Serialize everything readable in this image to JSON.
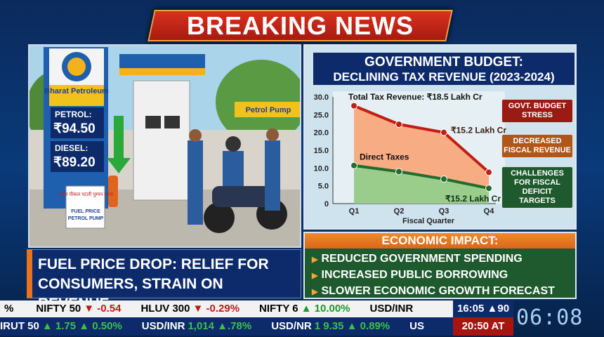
{
  "banner": "BREAKING NEWS",
  "image": {
    "brand": "Bharat Petroleum",
    "petrol_label": "PETROL:",
    "petrol_price": "₹94.50",
    "diesel_label": "DIESEL:",
    "diesel_price": "₹89.20",
    "pump_sign": "Petrol Pump",
    "board_hindi": "भारत पीकल पटली पुम्पन काना",
    "board_en1": "FUEL PRICE",
    "board_en2": "PETROL PUMP"
  },
  "caption": {
    "line1": "FUEL PRICE DROP: RELIEF FOR",
    "line2": "CONSUMERS, STRAIN ON REVENUE"
  },
  "chart_panel": {
    "title1": "GOVERNMENT BUDGET:",
    "title2": "DECLINING TAX REVENUE (2023-2024)",
    "tags": [
      {
        "text": "GOVT. BUDGET STRESS",
        "color": "#9a1a14"
      },
      {
        "text": "DECREASED FISCAL REVENUE",
        "color": "#b0561a"
      },
      {
        "text": "CHALLENGES FOR FISCAL DEFICIT TARGETS",
        "color": "#1f5a2e"
      }
    ]
  },
  "chart_data": {
    "type": "area",
    "categories": [
      "Q1",
      "Q2",
      "Q3",
      "Q4"
    ],
    "xlabel": "Fiscal Quarter",
    "ylabel": "",
    "ylim": [
      0,
      30
    ],
    "yticks": [
      "0",
      "5.0",
      "10.0",
      "15.0",
      "20.0",
      "25.0",
      "30.0"
    ],
    "grid": false,
    "series": [
      {
        "values": [
          27.5,
          22.3,
          20.0,
          8.8
        ],
        "color": "#c41e14",
        "fill": "#f9a070"
      },
      {
        "name": "Direct Taxes",
        "values": [
          10.7,
          9.0,
          6.9,
          4.3
        ],
        "color": "#236b2e",
        "fill": "#8fd08c"
      }
    ],
    "annotations": [
      "Total Tax Revenue: ₹18.5 Lakh Cr",
      "₹15.2 Lakh Cr",
      "₹15.2 Lakh Cr"
    ]
  },
  "impact": {
    "title": "ECONOMIC IMPACT:",
    "items": [
      "REDUCED GOVERNMENT SPENDING",
      "INCREASED PUBLIC BORROWING",
      "SLOWER ECONOMIC GROWTH FORECAST"
    ]
  },
  "ticker": {
    "row1": [
      {
        "name": "%",
        "val": "",
        "dir": ""
      },
      {
        "name": "NIFTY 50",
        "val": "▼ -0.54",
        "dir": "dn"
      },
      {
        "name": "HLUV 300",
        "val": "▼ -0.29%",
        "dir": "dn"
      },
      {
        "name": "NIFTY 6",
        "val": "▲ 10.00%",
        "dir": "up"
      },
      {
        "name": "USD/INR",
        "val": "",
        "dir": ""
      }
    ],
    "row2": [
      {
        "name": "IRUT 50",
        "val": "▲ 1.75 ▲ 0.50%",
        "dir": "up"
      },
      {
        "name": "USD/INR",
        "val": "1,014 ▲.78%",
        "dir": "up"
      },
      {
        "name": "USD/NR",
        "val": "1 9.35 ▲ 0.89%",
        "dir": "up"
      },
      {
        "name": "US",
        "val": "",
        "dir": ""
      }
    ],
    "clock_top": "16:05 ▲90",
    "clock_bottom": "20:50 AT",
    "big_clock": "06:08"
  }
}
